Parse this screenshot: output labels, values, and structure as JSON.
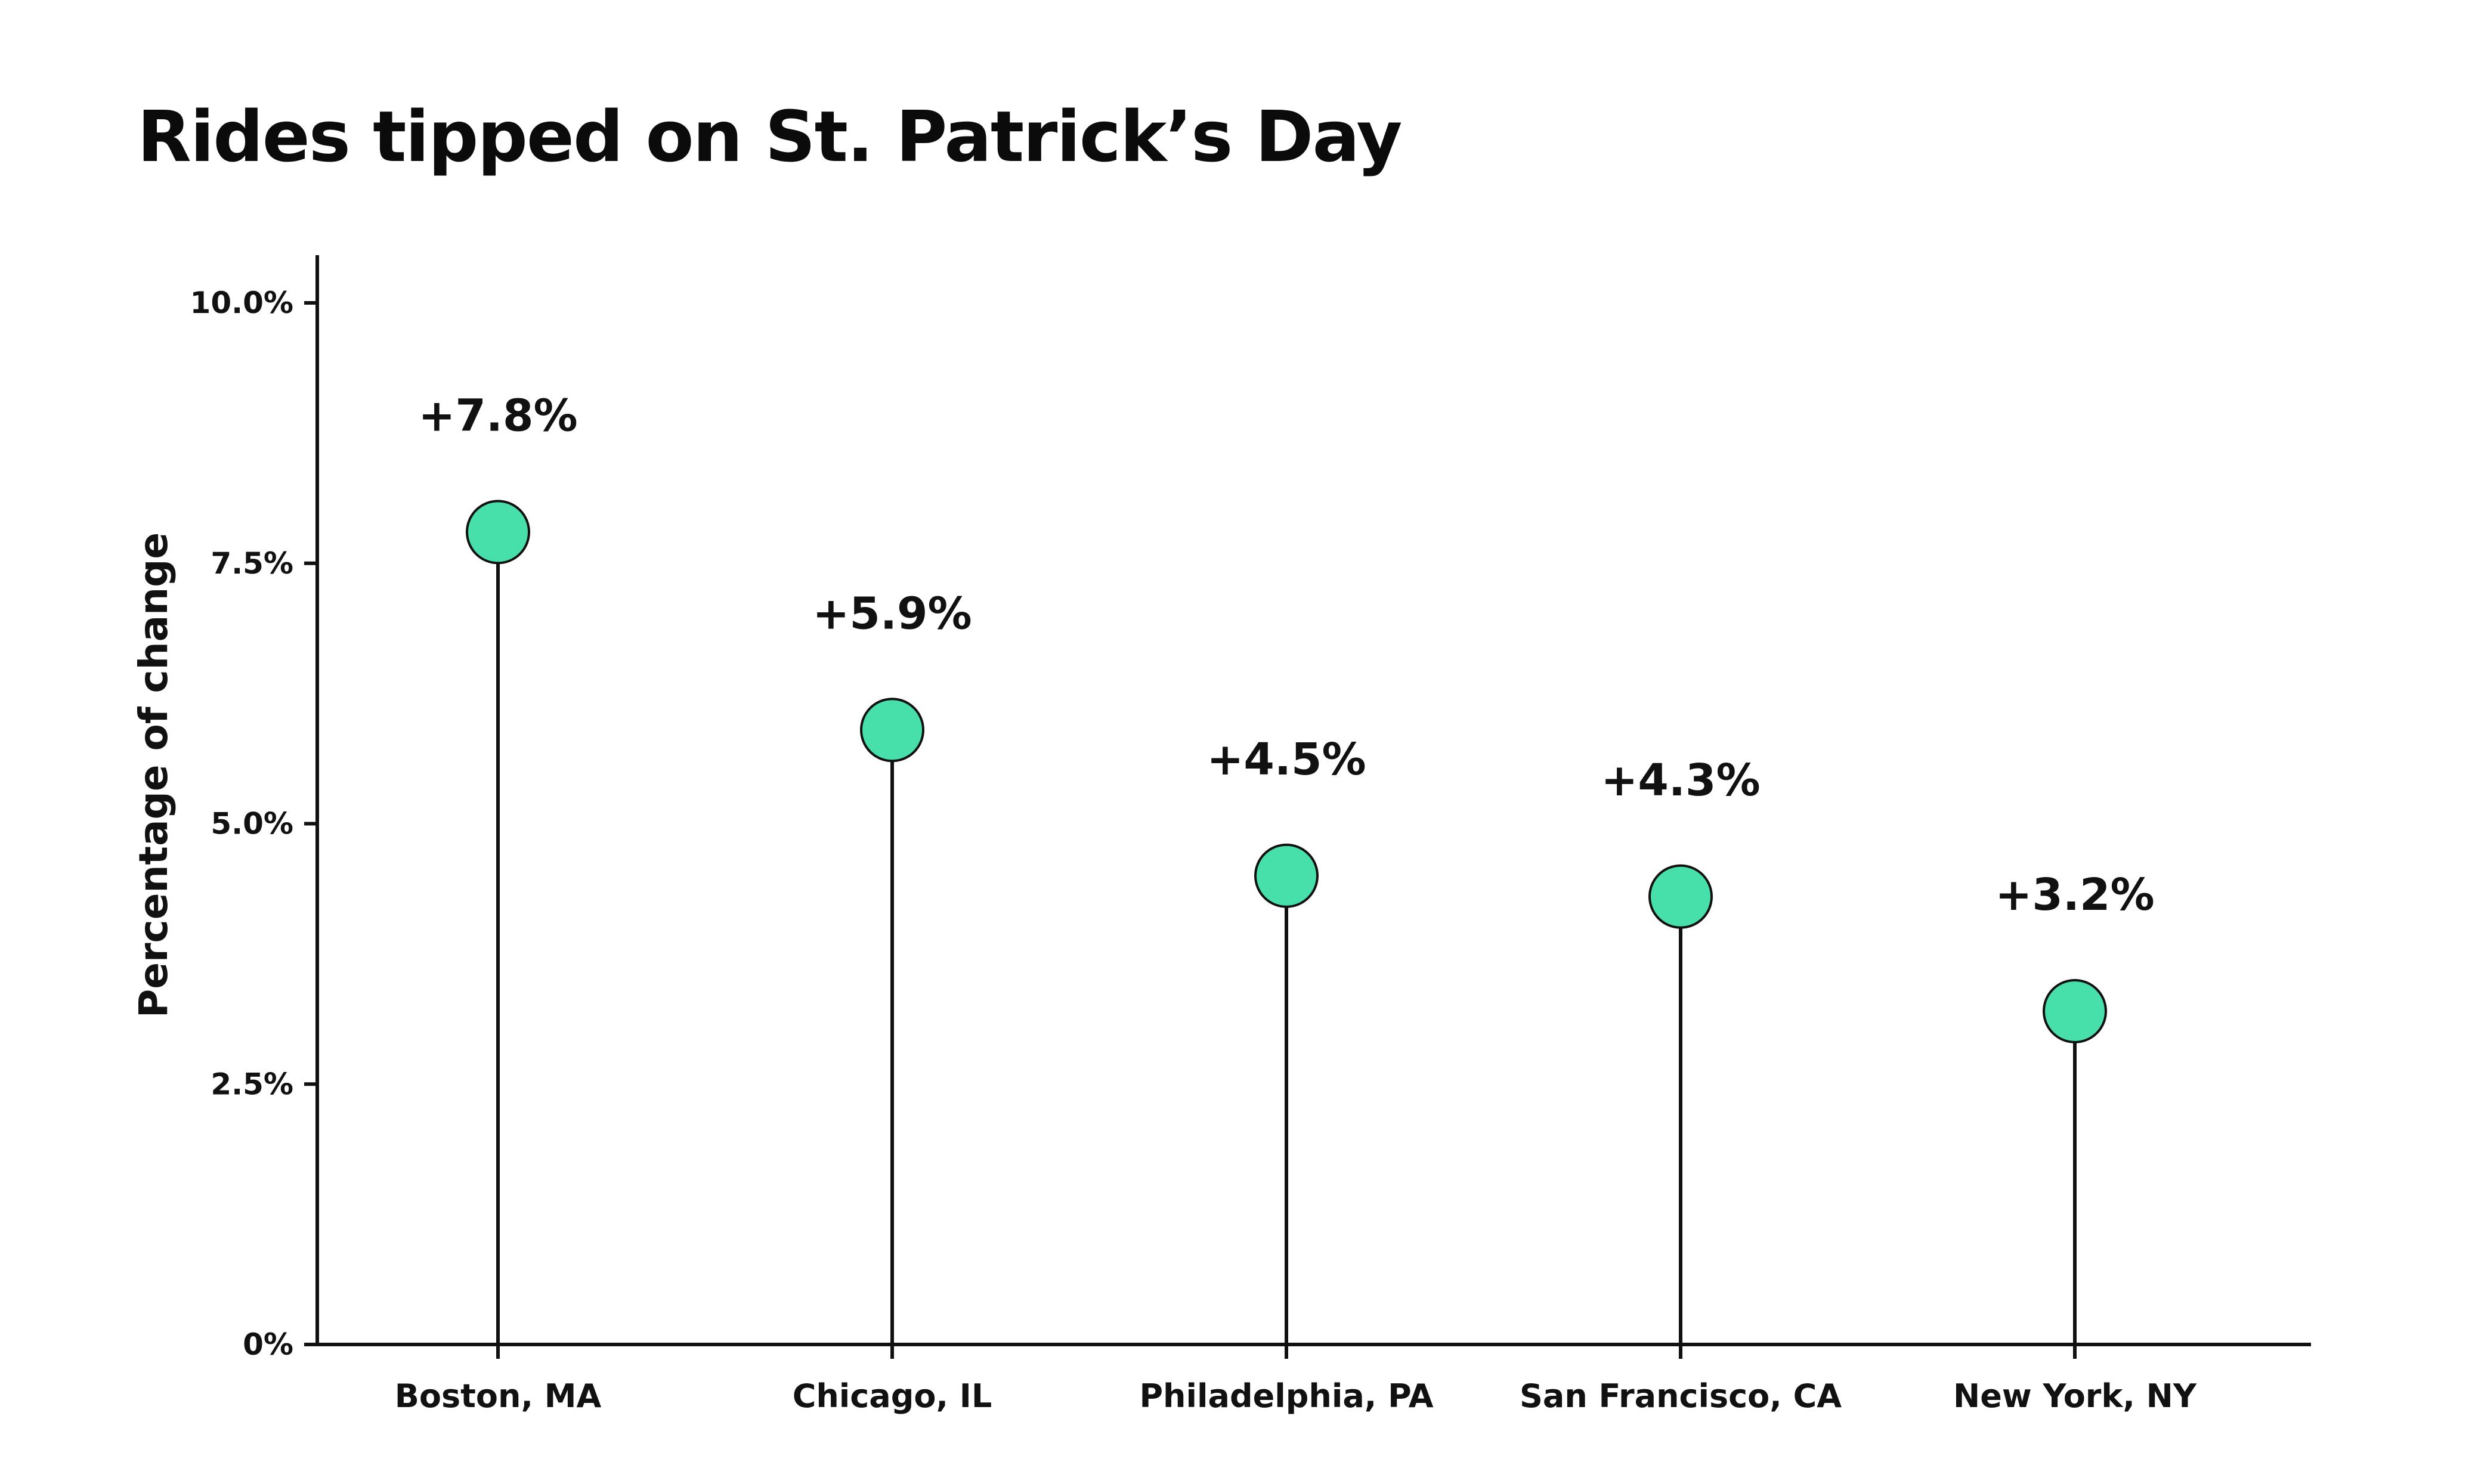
{
  "chart_data": {
    "type": "lollipop",
    "title": "Rides tipped on St. Patrick’s Day",
    "xlabel": "",
    "ylabel": "Percentage of change",
    "ylim": [
      0,
      10
    ],
    "yticks": [
      {
        "value": 0,
        "label": "0%"
      },
      {
        "value": 2.5,
        "label": "2.5%"
      },
      {
        "value": 5,
        "label": "5.0%"
      },
      {
        "value": 7.5,
        "label": "7.5%"
      },
      {
        "value": 10,
        "label": "10.0%"
      }
    ],
    "categories": [
      "Boston, MA",
      "Chicago, IL",
      "Philadelphia, PA",
      "San Francisco, CA",
      "New York, NY"
    ],
    "values": [
      7.8,
      5.9,
      4.5,
      4.3,
      3.2
    ],
    "data_labels": [
      "+7.8%",
      "+5.9%",
      "+4.5%",
      "+4.3%",
      "+3.2%"
    ],
    "marker_color": "#48e0aa",
    "line_color": "#111111",
    "grid": false,
    "legend": "none"
  }
}
